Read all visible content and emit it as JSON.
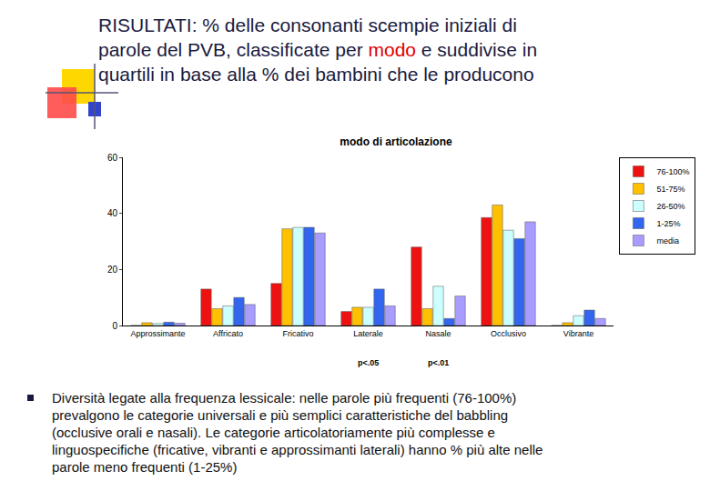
{
  "slide": {
    "title_lines": [
      "RISULTATI: % delle consonanti scempie iniziali di",
      "parole del PVB, classificate per modo e suddivise in",
      "quartili in base alla % dei bambini che le producono"
    ],
    "title_highlight": "modo",
    "bullet_lines": [
      "Diversità legate alla frequenza lessicale: nelle parole più frequenti (76-100%)",
      "prevalgono le categorie universali e più semplici caratteristiche del babbling",
      "(occlusive orali e nasali). Le categorie articolatoriamente più complesse e",
      "linguospecifiche (fricative, vibranti e approssimanti laterali) hanno % più alte nelle",
      "parole meno frequenti (1-25%)"
    ]
  },
  "chart_data": {
    "type": "bar",
    "title": "modo di articolazione",
    "categories": [
      "Approssimante",
      "Affricato",
      "Fricativo",
      "Laterale",
      "Nasale",
      "Occlusivo",
      "Vibrante"
    ],
    "series": [
      {
        "name": "76-100%",
        "color": "#ee1111",
        "values": [
          0,
          13,
          15,
          5,
          28,
          38.5,
          0
        ]
      },
      {
        "name": "51-75%",
        "color": "#ffc000",
        "values": [
          1,
          6,
          34.5,
          6.5,
          6,
          43,
          1
        ]
      },
      {
        "name": "26-50%",
        "color": "#ccffff",
        "values": [
          0.7,
          7,
          35,
          6.5,
          14,
          34,
          3.5
        ]
      },
      {
        "name": "1-25%",
        "color": "#3366ee",
        "values": [
          1.2,
          10,
          35,
          13,
          2.5,
          31,
          5.5
        ]
      },
      {
        "name": "media",
        "color": "#a99cff",
        "values": [
          0.8,
          7.5,
          33,
          7,
          10.5,
          37,
          2.5
        ]
      }
    ],
    "ylim": [
      0,
      60
    ],
    "yticks": [
      0,
      20,
      40,
      60
    ],
    "grid": false,
    "legend": "top-right",
    "annotations": [
      {
        "text": "p<.05",
        "category": "Laterale"
      },
      {
        "text": "p<.01",
        "category": "Nasale"
      }
    ]
  }
}
